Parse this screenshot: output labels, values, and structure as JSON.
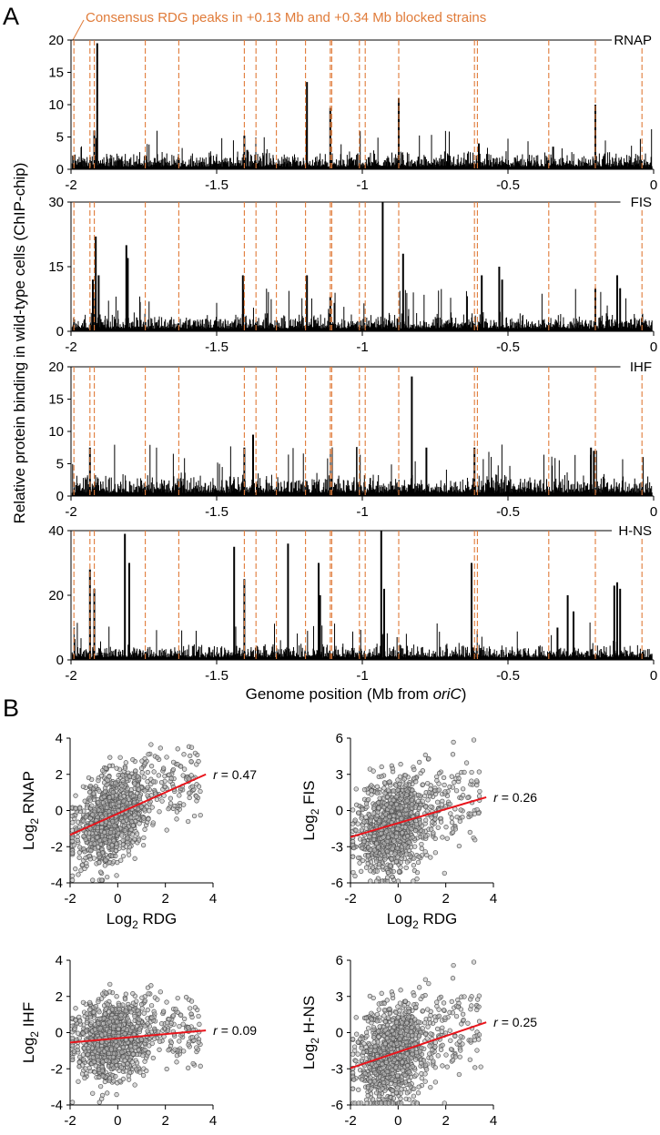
{
  "panels": {
    "a": {
      "letter": "A"
    },
    "b": {
      "letter": "B"
    }
  },
  "annotation": {
    "consensus_label": "Consensus RDG peaks in +0.13 Mb and +0.34 Mb blocked strains",
    "color": "#e07b39"
  },
  "axis": {
    "xlabel_prefix": "Genome position (Mb from ",
    "xlabel_italic": "oriC",
    "xlabel_suffix": ")",
    "ylabel": "Relative protein binding in wild-type cells (ChIP-chip)"
  },
  "colors": {
    "bars": "#000000",
    "guides": "#e07b39",
    "fit_line": "#e8141b",
    "points": "#555555"
  },
  "chart_data": [
    {
      "type": "bar",
      "title": "RNAP",
      "xlim": [
        -2,
        0
      ],
      "ylim": [
        0,
        20
      ],
      "yticks": [
        0,
        5,
        10,
        15,
        20
      ],
      "xticks": [
        "-2",
        "-1.5",
        "-1",
        "-0.5",
        "0"
      ],
      "baseline": 1.6,
      "consensus_positions": [
        -1.99,
        -1.935,
        -1.92,
        -1.745,
        -1.63,
        -1.405,
        -1.365,
        -1.295,
        -1.195,
        -1.11,
        -1.105,
        -1.01,
        -0.99,
        -0.875,
        -0.615,
        -0.605,
        -0.36,
        -0.2,
        -0.04
      ],
      "peaks": [
        [
          -1.92,
          6
        ],
        [
          -1.91,
          19.5
        ],
        [
          -1.405,
          5.2
        ],
        [
          -1.395,
          3
        ],
        [
          -1.19,
          13.5
        ],
        [
          -1.11,
          9.5
        ],
        [
          -0.875,
          11
        ],
        [
          -0.6,
          4
        ],
        [
          -0.2,
          10
        ],
        [
          -0.345,
          3.5
        ]
      ]
    },
    {
      "type": "bar",
      "title": "FIS",
      "xlim": [
        -2,
        0
      ],
      "ylim": [
        0,
        30
      ],
      "yticks": [
        0,
        15,
        30
      ],
      "xticks": [
        "-2",
        "-1.5",
        "-1",
        "-0.5",
        "0"
      ],
      "baseline": 2.5,
      "consensus_positions": [
        -1.99,
        -1.935,
        -1.92,
        -1.745,
        -1.63,
        -1.405,
        -1.365,
        -1.295,
        -1.195,
        -1.11,
        -1.105,
        -1.01,
        -0.99,
        -0.875,
        -0.615,
        -0.605,
        -0.36,
        -0.2,
        -0.04
      ],
      "peaks": [
        [
          -1.925,
          12
        ],
        [
          -1.915,
          22
        ],
        [
          -1.905,
          13
        ],
        [
          -1.81,
          20
        ],
        [
          -1.805,
          17
        ],
        [
          -1.41,
          13
        ],
        [
          -1.19,
          13
        ],
        [
          -1.11,
          8
        ],
        [
          -0.93,
          30
        ],
        [
          -0.86,
          18
        ],
        [
          -0.59,
          13
        ],
        [
          -0.53,
          15
        ],
        [
          -0.52,
          12
        ],
        [
          -0.2,
          10
        ],
        [
          -0.125,
          13
        ],
        [
          -0.115,
          10
        ]
      ]
    },
    {
      "type": "bar",
      "title": "IHF",
      "xlim": [
        -2,
        0
      ],
      "ylim": [
        0,
        20
      ],
      "yticks": [
        0,
        5,
        10,
        15,
        20
      ],
      "xticks": [
        "-2",
        "-1.5",
        "-1",
        "-0.5",
        "0"
      ],
      "baseline": 2,
      "consensus_positions": [
        -1.99,
        -1.935,
        -1.92,
        -1.745,
        -1.63,
        -1.405,
        -1.365,
        -1.295,
        -1.195,
        -1.11,
        -1.105,
        -1.01,
        -0.99,
        -0.875,
        -0.615,
        -0.605,
        -0.36,
        -0.2,
        -0.04
      ],
      "peaks": [
        [
          -1.935,
          7.5
        ],
        [
          -1.405,
          7.5
        ],
        [
          -1.375,
          9.5
        ],
        [
          -0.83,
          18.5
        ],
        [
          -0.78,
          7.5
        ],
        [
          -0.615,
          7.5
        ],
        [
          -0.215,
          7.5
        ],
        [
          -0.205,
          7
        ]
      ]
    },
    {
      "type": "bar",
      "title": "H-NS",
      "xlim": [
        -2,
        0
      ],
      "ylim": [
        0,
        40
      ],
      "yticks": [
        0,
        20,
        40
      ],
      "xticks": [
        "-2",
        "-1.5",
        "-1",
        "-0.5",
        "0"
      ],
      "xlabel": "Genome position (Mb from oriC)",
      "baseline": 3,
      "consensus_positions": [
        -1.99,
        -1.935,
        -1.92,
        -1.745,
        -1.63,
        -1.405,
        -1.365,
        -1.295,
        -1.195,
        -1.11,
        -1.105,
        -1.01,
        -0.99,
        -0.875,
        -0.615,
        -0.605,
        -0.36,
        -0.2,
        -0.04
      ],
      "peaks": [
        [
          -1.935,
          28
        ],
        [
          -1.92,
          22
        ],
        [
          -1.815,
          39
        ],
        [
          -1.8,
          30
        ],
        [
          -1.44,
          35
        ],
        [
          -1.405,
          25
        ],
        [
          -1.255,
          36
        ],
        [
          -1.15,
          30
        ],
        [
          -1.145,
          20
        ],
        [
          -0.935,
          40
        ],
        [
          -0.925,
          22
        ],
        [
          -0.625,
          30
        ],
        [
          -0.295,
          20
        ],
        [
          -0.275,
          15
        ],
        [
          -0.135,
          23
        ],
        [
          -0.125,
          24
        ],
        [
          -0.115,
          22
        ],
        [
          -0.33,
          10
        ]
      ]
    },
    {
      "type": "scatter",
      "title": "RNAP",
      "xlabel_base": "Log",
      "xlabel_sub": "2",
      "xlabel_name": "RDG",
      "ylabel_base": "Log",
      "ylabel_sub": "2",
      "ylabel_name": "RNAP",
      "xlim": [
        -2,
        4
      ],
      "ylim": [
        -4,
        4
      ],
      "xticks": [
        -2,
        0,
        2,
        4
      ],
      "yticks": [
        -4,
        -2,
        0,
        2,
        4
      ],
      "fit": {
        "x": [
          -2,
          3.7
        ],
        "y": [
          -1.35,
          2.0
        ]
      },
      "r_label": "r",
      "r_value": " = 0.47",
      "spread": 1.2,
      "slope": 0.59
    },
    {
      "type": "scatter",
      "title": "FIS",
      "xlabel_base": "Log",
      "xlabel_sub": "2",
      "xlabel_name": "RDG",
      "ylabel_base": "Log",
      "ylabel_sub": "2",
      "ylabel_name": "FIS",
      "xlim": [
        -2,
        4
      ],
      "ylim": [
        -6,
        6
      ],
      "xticks": [
        -2,
        0,
        2,
        4
      ],
      "yticks": [
        -6,
        -3,
        0,
        3,
        6
      ],
      "fit": {
        "x": [
          -2,
          3.7
        ],
        "y": [
          -2.2,
          1.1
        ]
      },
      "r_label": "r",
      "r_value": " = 0.26",
      "spread": 1.9,
      "slope": 0.58
    },
    {
      "type": "scatter",
      "title": "IHF",
      "xlabel_base": "Log",
      "xlabel_sub": "2",
      "xlabel_name": "RDG",
      "ylabel_base": "Log",
      "ylabel_sub": "2",
      "ylabel_name": "IHF",
      "xlim": [
        -2,
        4
      ],
      "ylim": [
        -4,
        4
      ],
      "xticks": [
        -2,
        0,
        2,
        4
      ],
      "yticks": [
        -4,
        -2,
        0,
        2,
        4
      ],
      "fit": {
        "x": [
          -2,
          3.7
        ],
        "y": [
          -0.55,
          0.12
        ]
      },
      "r_label": "r",
      "r_value": " = 0.09",
      "spread": 1.1,
      "slope": 0.12
    },
    {
      "type": "scatter",
      "title": "H-NS",
      "xlabel_base": "Log",
      "xlabel_sub": "2",
      "xlabel_name": "RDG",
      "ylabel_base": "Log",
      "ylabel_sub": "2",
      "ylabel_name": "H-NS",
      "xlim": [
        -2,
        4
      ],
      "ylim": [
        -6,
        6
      ],
      "xticks": [
        -2,
        0,
        2,
        4
      ],
      "yticks": [
        -6,
        -3,
        0,
        3,
        6
      ],
      "fit": {
        "x": [
          -2,
          3.7
        ],
        "y": [
          -2.95,
          0.85
        ]
      },
      "r_label": "r",
      "r_value": " = 0.25",
      "spread": 2.0,
      "slope": 0.67
    }
  ]
}
